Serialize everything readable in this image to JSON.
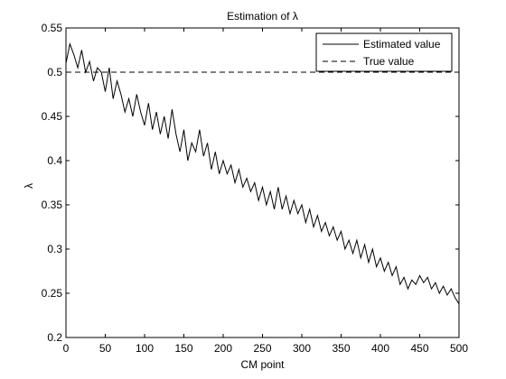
{
  "chart_data": {
    "type": "line",
    "title": "Estimation of λ",
    "xlabel": "CM point",
    "ylabel": "λ",
    "xlim": [
      0,
      500
    ],
    "ylim": [
      0.2,
      0.55
    ],
    "xticks": [
      0,
      50,
      100,
      150,
      200,
      250,
      300,
      350,
      400,
      450,
      500
    ],
    "yticks": [
      0.2,
      0.25,
      0.3,
      0.35,
      0.4,
      0.45,
      0.5,
      0.55
    ],
    "legend_position": "top-right",
    "grid": false,
    "series": [
      {
        "name": "Estimated value",
        "style": "solid",
        "color": "#000000",
        "x": [
          0,
          5,
          10,
          15,
          20,
          25,
          30,
          35,
          40,
          45,
          50,
          55,
          60,
          65,
          70,
          75,
          80,
          85,
          90,
          95,
          100,
          105,
          110,
          115,
          120,
          125,
          130,
          135,
          140,
          145,
          150,
          155,
          160,
          165,
          170,
          175,
          180,
          185,
          190,
          195,
          200,
          205,
          210,
          215,
          220,
          225,
          230,
          235,
          240,
          245,
          250,
          255,
          260,
          265,
          270,
          275,
          280,
          285,
          290,
          295,
          300,
          305,
          310,
          315,
          320,
          325,
          330,
          335,
          340,
          345,
          350,
          355,
          360,
          365,
          370,
          375,
          380,
          385,
          390,
          395,
          400,
          405,
          410,
          415,
          420,
          425,
          430,
          435,
          440,
          445,
          450,
          455,
          460,
          465,
          470,
          475,
          480,
          485,
          490,
          495,
          500
        ],
        "y": [
          0.51,
          0.532,
          0.52,
          0.505,
          0.525,
          0.5,
          0.512,
          0.49,
          0.505,
          0.5,
          0.478,
          0.505,
          0.47,
          0.49,
          0.475,
          0.455,
          0.47,
          0.45,
          0.475,
          0.455,
          0.44,
          0.465,
          0.435,
          0.455,
          0.43,
          0.45,
          0.425,
          0.458,
          0.43,
          0.41,
          0.435,
          0.4,
          0.42,
          0.41,
          0.435,
          0.405,
          0.42,
          0.39,
          0.41,
          0.385,
          0.4,
          0.385,
          0.395,
          0.375,
          0.39,
          0.37,
          0.38,
          0.365,
          0.375,
          0.355,
          0.37,
          0.35,
          0.365,
          0.345,
          0.37,
          0.345,
          0.36,
          0.34,
          0.355,
          0.34,
          0.35,
          0.33,
          0.345,
          0.325,
          0.338,
          0.32,
          0.33,
          0.315,
          0.325,
          0.31,
          0.32,
          0.3,
          0.31,
          0.295,
          0.31,
          0.29,
          0.305,
          0.285,
          0.3,
          0.28,
          0.29,
          0.275,
          0.285,
          0.27,
          0.28,
          0.26,
          0.268,
          0.255,
          0.265,
          0.26,
          0.27,
          0.262,
          0.268,
          0.255,
          0.262,
          0.25,
          0.258,
          0.248,
          0.255,
          0.245,
          0.238
        ]
      },
      {
        "name": "True value",
        "style": "dashed",
        "color": "#000000",
        "x": [
          0,
          500
        ],
        "y": [
          0.5,
          0.5
        ]
      }
    ]
  }
}
